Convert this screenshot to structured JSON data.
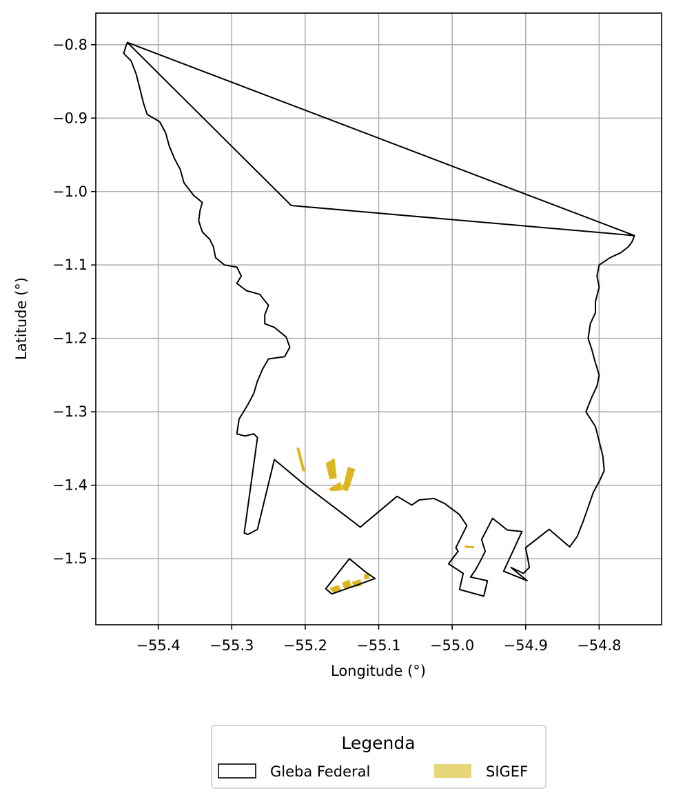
{
  "chart_data": {
    "type": "map",
    "xlabel": "Longitude (°)",
    "ylabel": "Latitude (°)",
    "xlim": [
      -55.485,
      -54.715
    ],
    "ylim": [
      -1.59,
      -0.757
    ],
    "grid": true,
    "x_ticks": [
      {
        "value": -55.4,
        "label": "−55.4"
      },
      {
        "value": -55.3,
        "label": "−55.3"
      },
      {
        "value": -55.2,
        "label": "−55.2"
      },
      {
        "value": -55.1,
        "label": "−55.1"
      },
      {
        "value": -55.0,
        "label": "−55.0"
      },
      {
        "value": -54.9,
        "label": "−54.9"
      },
      {
        "value": -54.8,
        "label": "−54.8"
      }
    ],
    "y_ticks": [
      {
        "value": -0.8,
        "label": "−0.8"
      },
      {
        "value": -0.9,
        "label": "−0.9"
      },
      {
        "value": -1.0,
        "label": "−1.0"
      },
      {
        "value": -1.1,
        "label": "−1.1"
      },
      {
        "value": -1.2,
        "label": "−1.2"
      },
      {
        "value": -1.3,
        "label": "−1.3"
      },
      {
        "value": -1.4,
        "label": "−1.4"
      },
      {
        "value": -1.5,
        "label": "−1.5"
      }
    ],
    "legend": {
      "title": "Legenda",
      "placement": "bottom-center below axes",
      "entries": [
        {
          "label": "Gleba Federal",
          "style": "outline",
          "edge_color": "#000000"
        },
        {
          "label": "SIGEF",
          "style": "fill",
          "fill_color": "#e8d67a"
        }
      ]
    },
    "layers": [
      {
        "name": "Gleba Federal",
        "style": "outline",
        "edge_color": "#000000",
        "polygons": [
          [
            [
              -55.442,
              -0.797
            ],
            [
              -54.752,
              -1.06
            ],
            [
              -54.755,
              -1.068
            ],
            [
              -54.76,
              -1.075
            ],
            [
              -54.77,
              -1.083
            ],
            [
              -54.785,
              -1.09
            ],
            [
              -54.8,
              -1.1
            ],
            [
              -54.803,
              -1.115
            ],
            [
              -54.8,
              -1.13
            ],
            [
              -54.805,
              -1.15
            ],
            [
              -54.805,
              -1.165
            ],
            [
              -54.812,
              -1.18
            ],
            [
              -54.815,
              -1.2
            ],
            [
              -54.81,
              -1.215
            ],
            [
              -54.806,
              -1.23
            ],
            [
              -54.8,
              -1.25
            ],
            [
              -54.803,
              -1.265
            ],
            [
              -54.81,
              -1.28
            ],
            [
              -54.818,
              -1.3
            ],
            [
              -54.805,
              -1.32
            ],
            [
              -54.8,
              -1.34
            ],
            [
              -54.795,
              -1.36
            ],
            [
              -54.793,
              -1.38
            ],
            [
              -54.8,
              -1.395
            ],
            [
              -54.808,
              -1.41
            ],
            [
              -54.815,
              -1.43
            ],
            [
              -54.822,
              -1.45
            ],
            [
              -54.83,
              -1.47
            ],
            [
              -54.84,
              -1.484
            ],
            [
              -54.868,
              -1.46
            ],
            [
              -54.9,
              -1.485
            ],
            [
              -54.897,
              -1.5
            ],
            [
              -54.895,
              -1.512
            ],
            [
              -54.903,
              -1.52
            ],
            [
              -54.92,
              -1.512
            ],
            [
              -54.898,
              -1.53
            ],
            [
              -54.93,
              -1.517
            ],
            [
              -54.905,
              -1.463
            ],
            [
              -54.925,
              -1.461
            ],
            [
              -54.945,
              -1.445
            ],
            [
              -54.96,
              -1.474
            ],
            [
              -54.955,
              -1.49
            ],
            [
              -54.96,
              -1.5
            ],
            [
              -54.968,
              -1.515
            ],
            [
              -54.975,
              -1.525
            ],
            [
              -54.952,
              -1.53
            ],
            [
              -54.957,
              -1.551
            ],
            [
              -54.99,
              -1.542
            ],
            [
              -54.985,
              -1.52
            ],
            [
              -55.005,
              -1.507
            ],
            [
              -54.992,
              -1.49
            ],
            [
              -54.995,
              -1.485
            ],
            [
              -54.985,
              -1.465
            ],
            [
              -54.98,
              -1.455
            ],
            [
              -54.99,
              -1.44
            ],
            [
              -55.01,
              -1.425
            ],
            [
              -55.025,
              -1.418
            ],
            [
              -55.045,
              -1.42
            ],
            [
              -55.055,
              -1.427
            ],
            [
              -55.075,
              -1.415
            ],
            [
              -55.125,
              -1.457
            ],
            [
              -55.2,
              -1.4
            ],
            [
              -55.242,
              -1.365
            ],
            [
              -55.265,
              -1.46
            ],
            [
              -55.278,
              -1.467
            ],
            [
              -55.283,
              -1.465
            ],
            [
              -55.265,
              -1.335
            ],
            [
              -55.27,
              -1.33
            ],
            [
              -55.282,
              -1.333
            ],
            [
              -55.293,
              -1.33
            ],
            [
              -55.29,
              -1.31
            ],
            [
              -55.278,
              -1.29
            ],
            [
              -55.27,
              -1.275
            ],
            [
              -55.265,
              -1.258
            ],
            [
              -55.258,
              -1.242
            ],
            [
              -55.25,
              -1.228
            ],
            [
              -55.228,
              -1.225
            ],
            [
              -55.221,
              -1.212
            ],
            [
              -55.226,
              -1.198
            ],
            [
              -55.242,
              -1.185
            ],
            [
              -55.255,
              -1.18
            ],
            [
              -55.255,
              -1.168
            ],
            [
              -55.25,
              -1.155
            ],
            [
              -55.262,
              -1.14
            ],
            [
              -55.28,
              -1.135
            ],
            [
              -55.293,
              -1.125
            ],
            [
              -55.287,
              -1.115
            ],
            [
              -55.293,
              -1.103
            ],
            [
              -55.31,
              -1.1
            ],
            [
              -55.322,
              -1.09
            ],
            [
              -55.325,
              -1.075
            ],
            [
              -55.33,
              -1.065
            ],
            [
              -55.34,
              -1.055
            ],
            [
              -55.345,
              -1.04
            ],
            [
              -55.343,
              -1.025
            ],
            [
              -55.34,
              -1.015
            ],
            [
              -55.352,
              -1.005
            ],
            [
              -55.365,
              -0.988
            ],
            [
              -55.37,
              -0.97
            ],
            [
              -55.378,
              -0.955
            ],
            [
              -55.385,
              -0.938
            ],
            [
              -55.39,
              -0.92
            ],
            [
              -55.398,
              -0.905
            ],
            [
              -55.415,
              -0.895
            ],
            [
              -55.42,
              -0.88
            ],
            [
              -55.425,
              -0.86
            ],
            [
              -55.43,
              -0.84
            ],
            [
              -55.437,
              -0.822
            ],
            [
              -55.447,
              -0.812
            ],
            [
              -55.444,
              -0.802
            ],
            [
              -55.442,
              -0.797
            ]
          ],
          [
            [
              -55.442,
              -0.797
            ],
            [
              -55.219,
              -1.019
            ],
            [
              -54.752,
              -1.06
            ]
          ],
          [
            [
              -55.172,
              -1.541
            ],
            [
              -55.164,
              -1.548
            ],
            [
              -55.127,
              -1.535
            ],
            [
              -55.105,
              -1.527
            ],
            [
              -55.118,
              -1.518
            ],
            [
              -55.14,
              -1.5
            ],
            [
              -55.172,
              -1.541
            ]
          ]
        ]
      },
      {
        "name": "SIGEF",
        "style": "fill",
        "fill_color": "#dcb61f",
        "polygons": [
          [
            [
              -55.212,
              -1.349
            ],
            [
              -55.208,
              -1.349
            ],
            [
              -55.2,
              -1.381
            ],
            [
              -55.204,
              -1.381
            ]
          ],
          [
            [
              -55.172,
              -1.37
            ],
            [
              -55.16,
              -1.363
            ],
            [
              -55.157,
              -1.39
            ],
            [
              -55.167,
              -1.392
            ]
          ],
          [
            [
              -55.168,
              -1.405
            ],
            [
              -55.152,
              -1.395
            ],
            [
              -55.15,
              -1.407
            ],
            [
              -55.165,
              -1.408
            ]
          ],
          [
            [
              -55.142,
              -1.375
            ],
            [
              -55.132,
              -1.378
            ],
            [
              -55.14,
              -1.403
            ],
            [
              -55.148,
              -1.4
            ]
          ],
          [
            [
              -55.15,
              -1.4
            ],
            [
              -55.14,
              -1.4
            ],
            [
              -55.142,
              -1.408
            ],
            [
              -55.15,
              -1.406
            ]
          ],
          [
            [
              -55.167,
              -1.54
            ],
            [
              -55.155,
              -1.536
            ],
            [
              -55.15,
              -1.544
            ],
            [
              -55.16,
              -1.548
            ]
          ],
          [
            [
              -55.15,
              -1.533
            ],
            [
              -55.14,
              -1.528
            ],
            [
              -55.137,
              -1.538
            ],
            [
              -55.147,
              -1.541
            ]
          ],
          [
            [
              -55.137,
              -1.532
            ],
            [
              -55.125,
              -1.528
            ],
            [
              -55.122,
              -1.536
            ],
            [
              -55.132,
              -1.539
            ]
          ],
          [
            [
              -55.12,
              -1.521
            ],
            [
              -55.113,
              -1.52
            ],
            [
              -55.113,
              -1.528
            ],
            [
              -55.12,
              -1.528
            ]
          ],
          [
            [
              -54.983,
              -1.482
            ],
            [
              -54.97,
              -1.483
            ],
            [
              -54.97,
              -1.486
            ],
            [
              -54.983,
              -1.485
            ]
          ]
        ]
      }
    ]
  }
}
